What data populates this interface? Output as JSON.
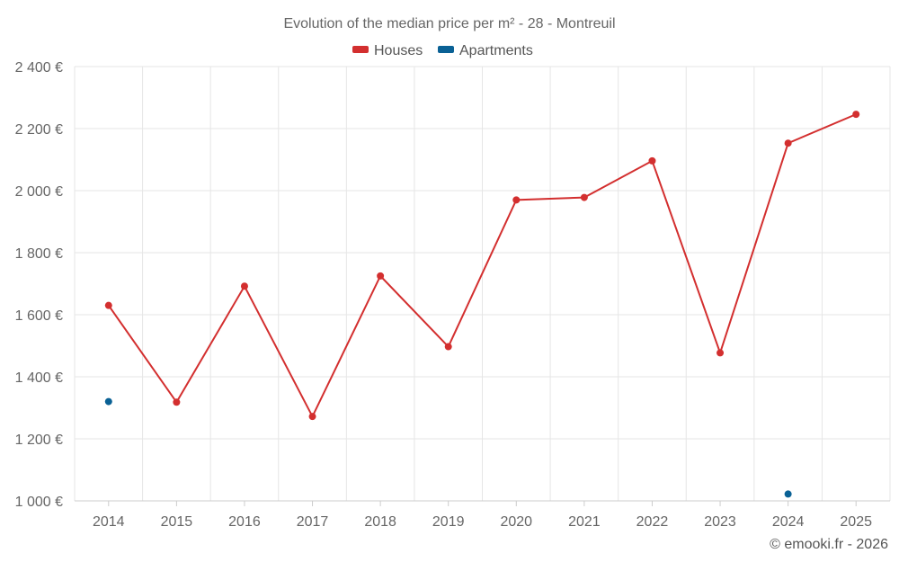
{
  "chart_data": {
    "type": "line",
    "title": "Evolution of the median price per m² - 28 - Montreuil",
    "categories": [
      "2014",
      "2015",
      "2016",
      "2017",
      "2018",
      "2019",
      "2020",
      "2021",
      "2022",
      "2023",
      "2024",
      "2025"
    ],
    "y_tick_labels": [
      "1 000 €",
      "1 200 €",
      "1 400 €",
      "1 600 €",
      "1 800 €",
      "2 000 €",
      "2 200 €",
      "2 400 €"
    ],
    "y_ticks": [
      1000,
      1200,
      1400,
      1600,
      1800,
      2000,
      2200,
      2400
    ],
    "ylim": [
      1000,
      2400
    ],
    "xlabel": "",
    "ylabel": "",
    "grid": true,
    "legend_position": "top-center",
    "series": [
      {
        "name": "Houses",
        "color": "#d32f2f",
        "values": [
          1630,
          1318,
          1692,
          1272,
          1725,
          1497,
          1970,
          1978,
          2096,
          1477,
          2153,
          2246
        ]
      },
      {
        "name": "Apartments",
        "color": "#0a6195",
        "values": [
          1320,
          null,
          null,
          null,
          null,
          null,
          null,
          null,
          null,
          null,
          1022,
          null
        ]
      }
    ]
  },
  "credit": "© emooki.fr - 2026"
}
